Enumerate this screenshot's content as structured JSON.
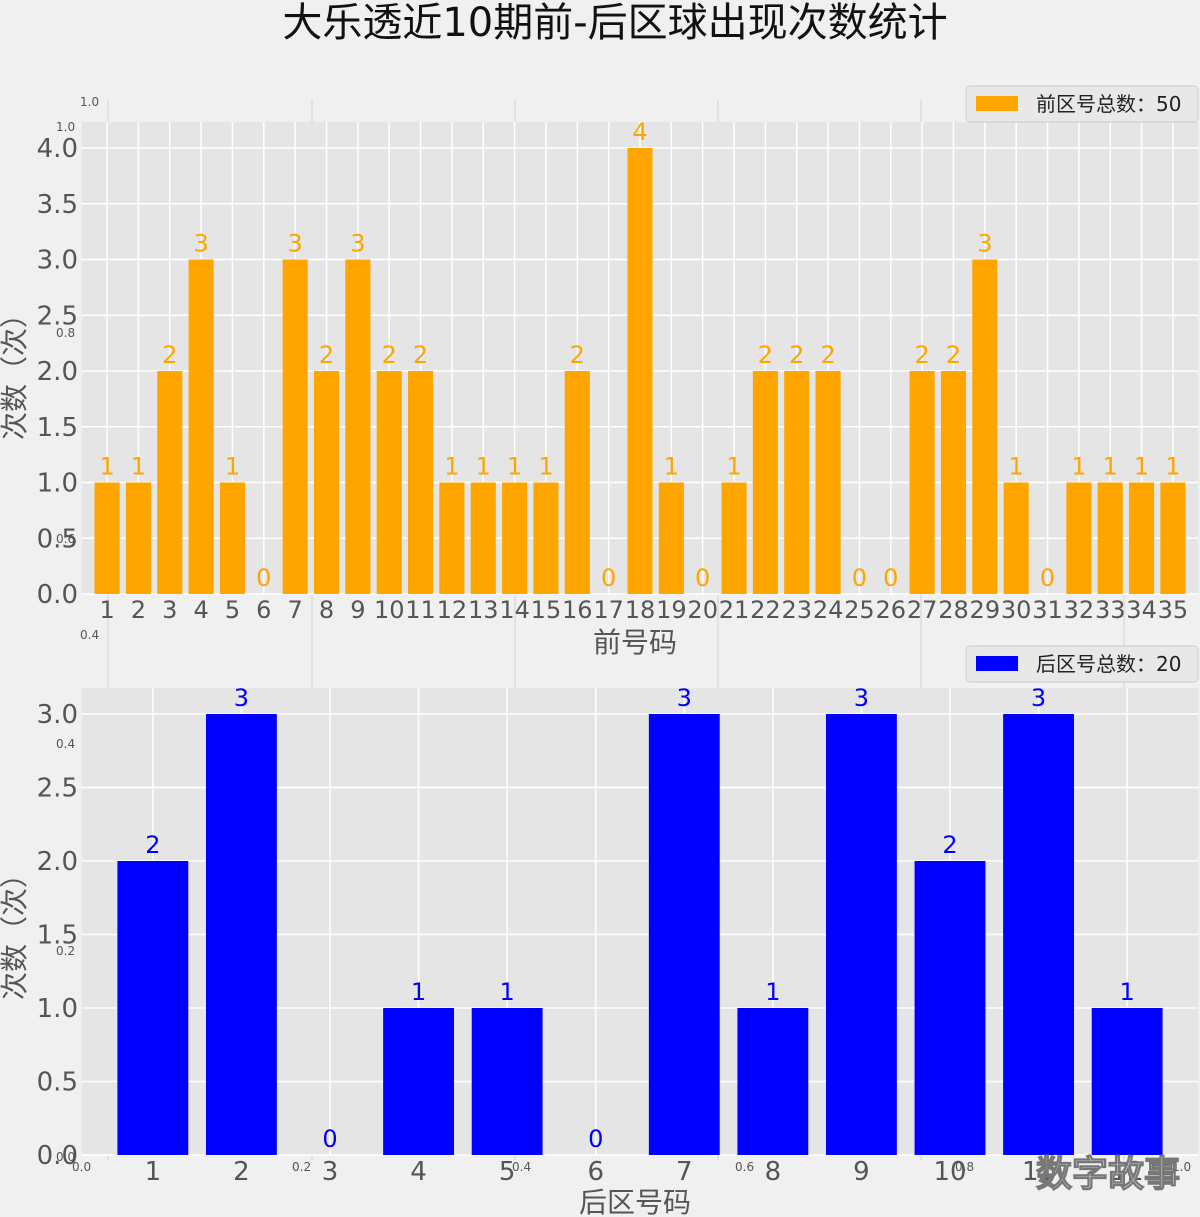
{
  "title": "大乐透近10期前-后区球出现次数统计",
  "watermark": "数字故事",
  "chart_data": [
    {
      "type": "bar",
      "xlabel": "前号码",
      "ylabel": "次数（次）",
      "legend": "前区号总数：50",
      "legend_position": "top-right",
      "color": "#ffa500",
      "grid": true,
      "ylim": [
        0,
        4
      ],
      "yticks": [
        "0.0",
        "0.5",
        "1.0",
        "1.5",
        "2.0",
        "2.5",
        "3.0",
        "3.5",
        "4.0"
      ],
      "categories": [
        "1",
        "2",
        "3",
        "4",
        "5",
        "6",
        "7",
        "8",
        "9",
        "10",
        "11",
        "12",
        "13",
        "14",
        "15",
        "16",
        "17",
        "18",
        "19",
        "20",
        "21",
        "22",
        "23",
        "24",
        "25",
        "26",
        "27",
        "28",
        "29",
        "30",
        "31",
        "32",
        "33",
        "34",
        "35"
      ],
      "values": [
        1,
        1,
        2,
        3,
        1,
        0,
        3,
        2,
        3,
        2,
        2,
        1,
        1,
        1,
        1,
        2,
        0,
        4,
        1,
        0,
        1,
        2,
        2,
        2,
        0,
        0,
        2,
        2,
        3,
        1,
        0,
        1,
        1,
        1,
        1
      ]
    },
    {
      "type": "bar",
      "xlabel": "后区号码",
      "ylabel": "次数（次）",
      "legend": "后区号总数：20",
      "legend_position": "top-right",
      "color": "#0000ff",
      "grid": true,
      "ylim": [
        0,
        3
      ],
      "yticks": [
        "0.0",
        "0.5",
        "1.0",
        "1.5",
        "2.0",
        "2.5",
        "3.0"
      ],
      "categories": [
        "1",
        "2",
        "3",
        "4",
        "5",
        "6",
        "7",
        "8",
        "9",
        "10",
        "11",
        "12"
      ],
      "values": [
        2,
        3,
        0,
        1,
        1,
        0,
        3,
        1,
        3,
        2,
        3,
        1
      ]
    }
  ],
  "background_axis_ticks": {
    "upper_x": [
      "1.0",
      "1.0"
    ],
    "left_y": [
      "0.8",
      "0.6",
      "0.4",
      "0.4",
      "0.2",
      "0.0"
    ],
    "bottom_x": [
      "0.0",
      "0.2",
      "0.4",
      "0.6",
      "0.8",
      "1.0"
    ]
  }
}
